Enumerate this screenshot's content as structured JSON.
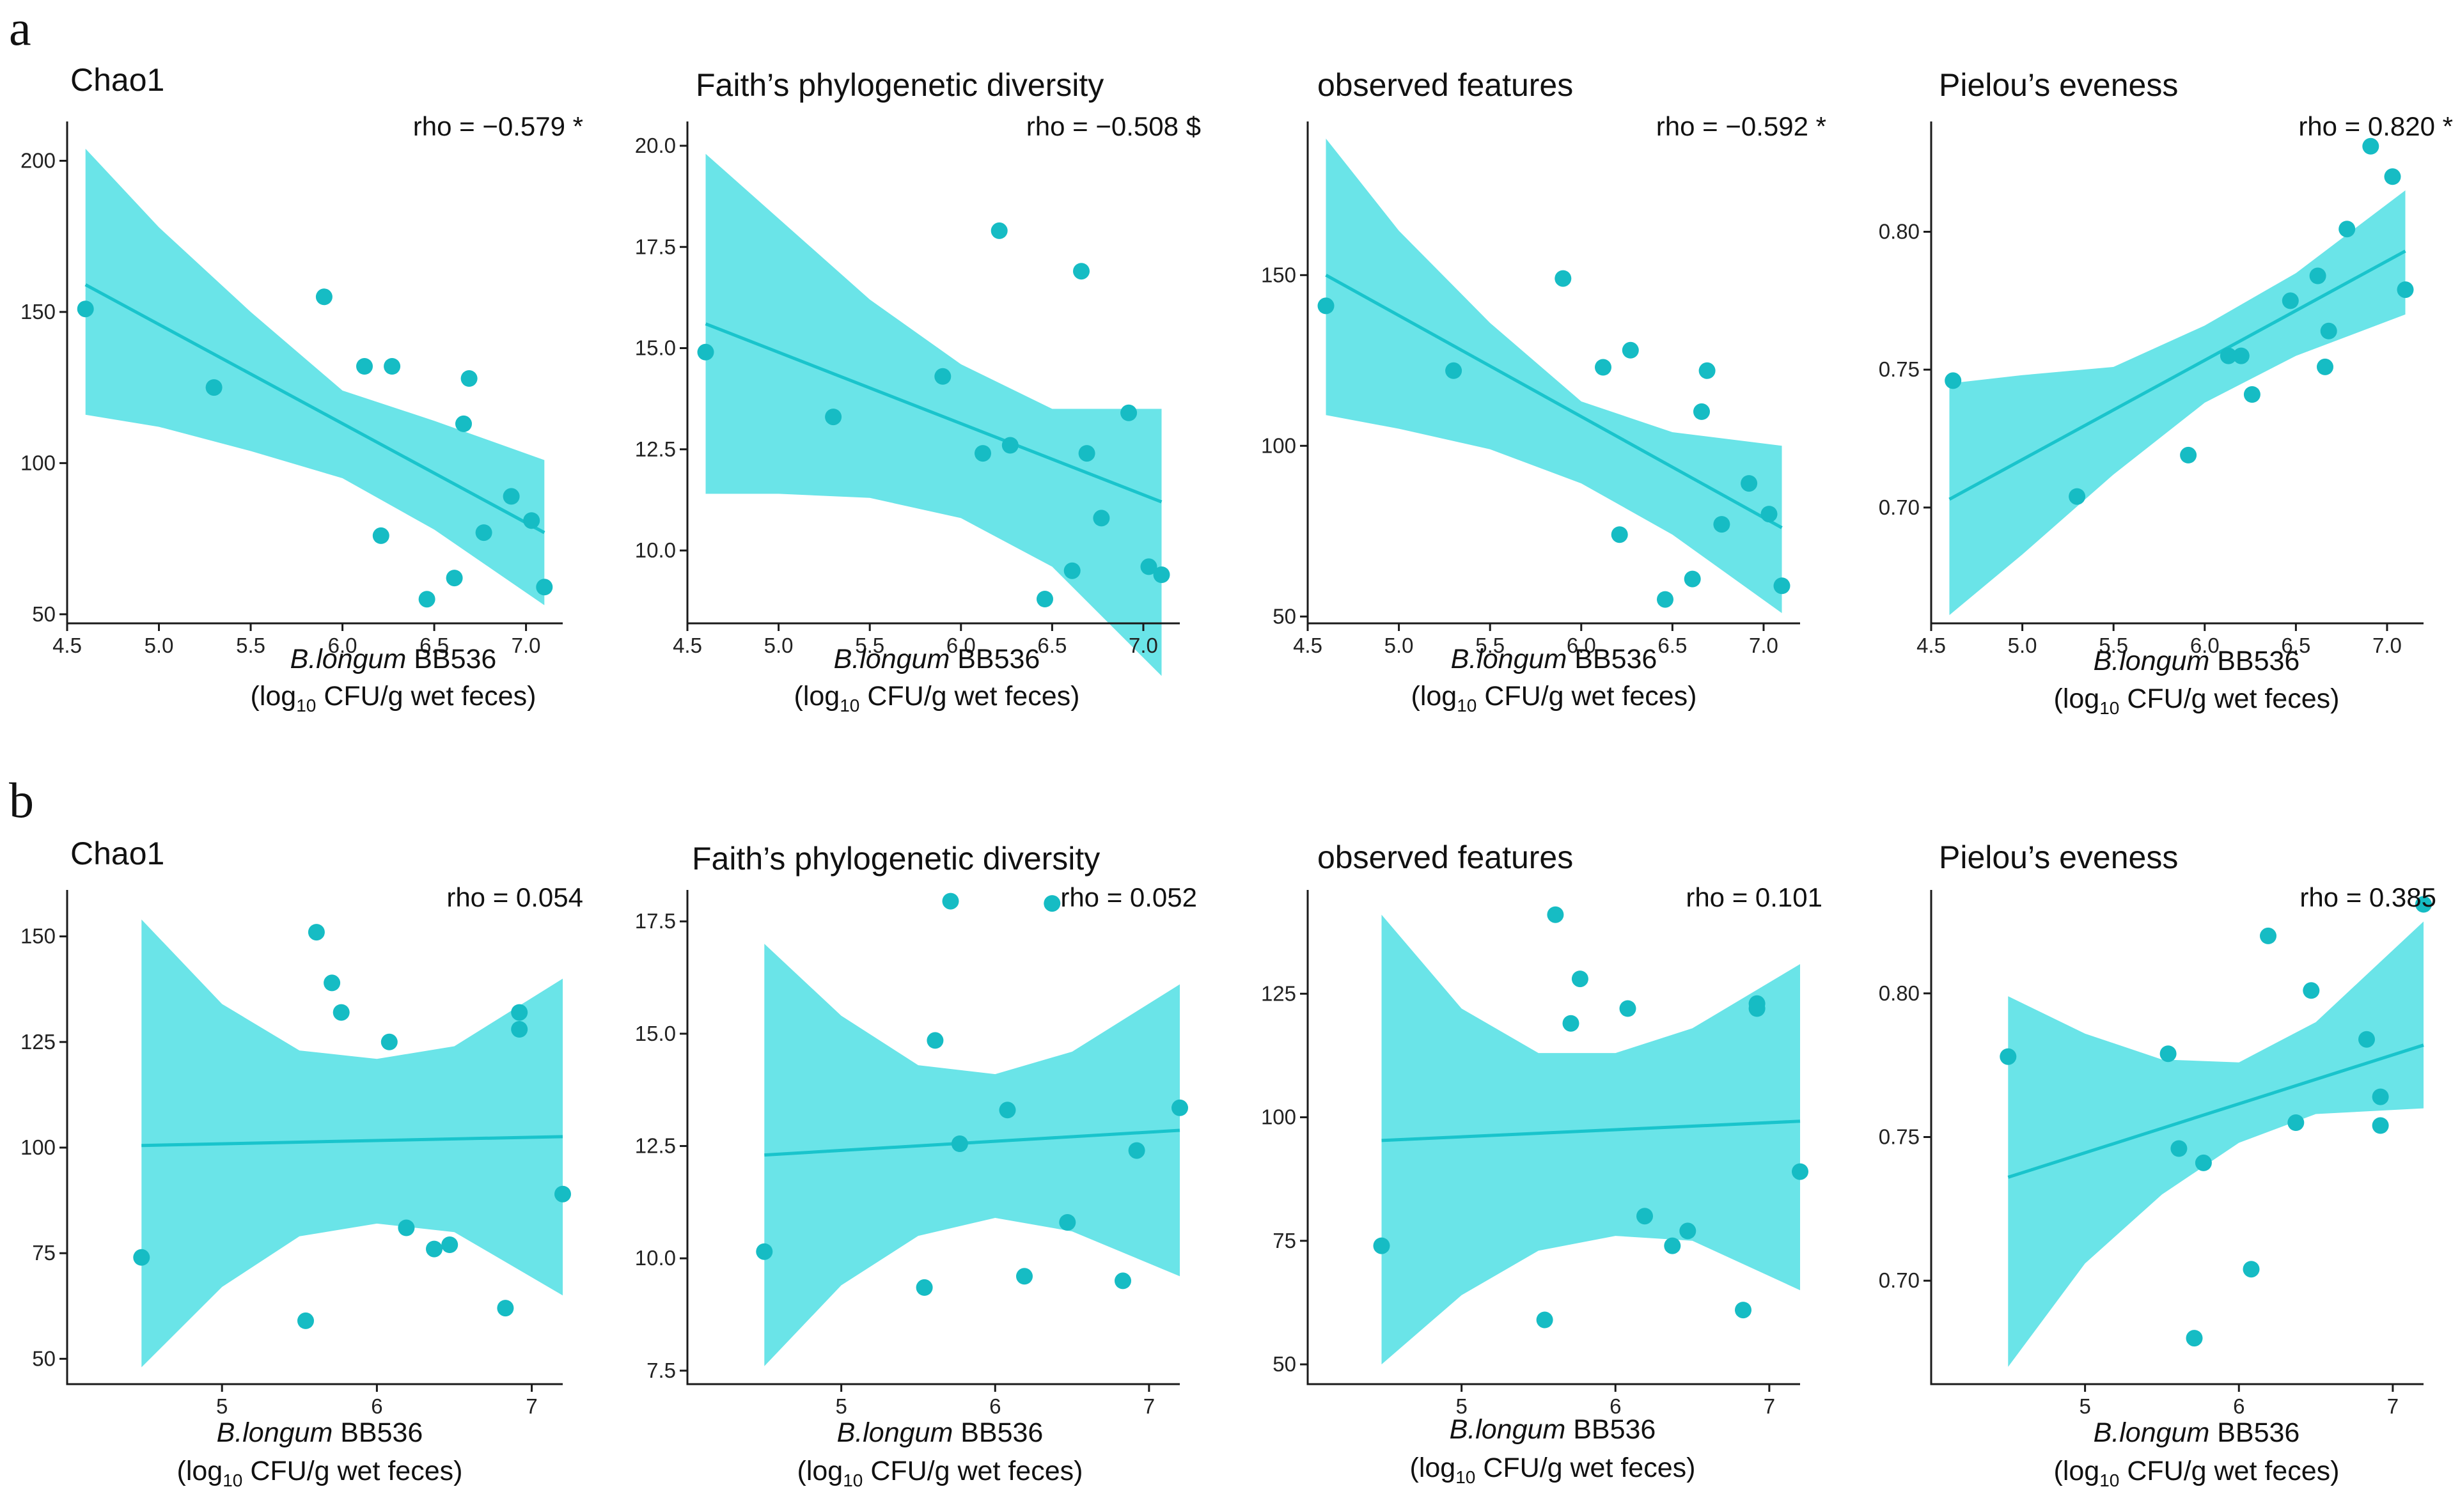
{
  "figure": {
    "panel_letters": [
      "a",
      "b"
    ],
    "colors": {
      "band": "#6ae4e8",
      "line": "#19c4cc",
      "point": "#16bcc4"
    },
    "xlabel": {
      "species": "B.longum",
      "strain": "BB536",
      "unit_prefix": "(log",
      "unit_sub": "10",
      "unit_suffix": " CFU/g wet feces)"
    }
  },
  "chart_data": [
    {
      "type": "scatter",
      "title": "Chao1",
      "annotation": "rho =  −0.579 *",
      "xlim": [
        4.5,
        7.2
      ],
      "ylim": [
        47,
        213
      ],
      "xticks": [
        4.5,
        5.0,
        5.5,
        6.0,
        6.5,
        7.0
      ],
      "xtick_labels": [
        "4.5",
        "5.0",
        "5.5",
        "6.0",
        "6.5",
        "7.0"
      ],
      "yticks": [
        50,
        100,
        150,
        200
      ],
      "ytick_labels": [
        "50",
        "100",
        "150",
        "200"
      ],
      "x": [
        4.6,
        5.3,
        5.9,
        6.12,
        6.21,
        6.27,
        6.46,
        6.61,
        6.66,
        6.69,
        6.77,
        6.92,
        7.03,
        7.1
      ],
      "y": [
        151,
        125,
        155,
        132,
        76,
        132,
        55,
        62,
        113,
        128,
        77,
        89,
        81,
        59
      ],
      "fit": {
        "x": [
          4.6,
          7.1
        ],
        "y": [
          159,
          77
        ]
      },
      "band": {
        "x": [
          4.6,
          5.0,
          5.5,
          6.0,
          6.5,
          7.1
        ],
        "lower": [
          116,
          112,
          104,
          95,
          78,
          53
        ],
        "upper": [
          204,
          178,
          150,
          124,
          114,
          101
        ]
      }
    },
    {
      "type": "scatter",
      "title": "Faith’s phylogenetic diversity",
      "annotation": "rho =  −0.508 $",
      "xlim": [
        4.5,
        7.2
      ],
      "ylim": [
        8.2,
        20.6
      ],
      "xticks": [
        4.5,
        5.0,
        5.5,
        6.0,
        6.5,
        7.0
      ],
      "xtick_labels": [
        "4.5",
        "5.0",
        "5.5",
        "6.0",
        "6.5",
        "7.0"
      ],
      "yticks": [
        10.0,
        12.5,
        15.0,
        17.5,
        20.0
      ],
      "ytick_labels": [
        "10.0",
        "12.5",
        "15.0",
        "17.5",
        "20.0"
      ],
      "x": [
        4.6,
        5.3,
        5.9,
        6.12,
        6.21,
        6.27,
        6.46,
        6.61,
        6.66,
        6.69,
        6.77,
        6.92,
        7.03,
        7.1
      ],
      "y": [
        14.9,
        13.3,
        14.3,
        12.4,
        17.9,
        12.6,
        8.8,
        9.5,
        16.9,
        12.4,
        10.8,
        13.4,
        9.6,
        9.4
      ],
      "fit": {
        "x": [
          4.6,
          7.1
        ],
        "y": [
          15.6,
          11.2
        ]
      },
      "band": {
        "x": [
          4.6,
          5.0,
          5.5,
          6.0,
          6.5,
          7.1
        ],
        "lower": [
          11.4,
          11.4,
          11.3,
          10.8,
          9.6,
          6.9
        ],
        "upper": [
          19.8,
          18.2,
          16.2,
          14.6,
          13.5,
          13.5
        ]
      }
    },
    {
      "type": "scatter",
      "title": "observed features",
      "annotation": "rho =  −0.592 *",
      "xlim": [
        4.5,
        7.2
      ],
      "ylim": [
        48,
        195
      ],
      "xticks": [
        4.5,
        5.0,
        5.5,
        6.0,
        6.5,
        7.0
      ],
      "xtick_labels": [
        "4.5",
        "5.0",
        "5.5",
        "6.0",
        "6.5",
        "7.0"
      ],
      "yticks": [
        50,
        100,
        150
      ],
      "ytick_labels": [
        "50",
        "100",
        "150"
      ],
      "x": [
        4.6,
        5.3,
        5.9,
        6.12,
        6.21,
        6.27,
        6.46,
        6.61,
        6.66,
        6.69,
        6.77,
        6.92,
        7.03,
        7.1
      ],
      "y": [
        141,
        122,
        149,
        123,
        74,
        128,
        55,
        61,
        110,
        122,
        77,
        89,
        80,
        59
      ],
      "fit": {
        "x": [
          4.6,
          7.1
        ],
        "y": [
          150,
          76
        ]
      },
      "band": {
        "x": [
          4.6,
          5.0,
          5.5,
          6.0,
          6.5,
          7.1
        ],
        "lower": [
          109,
          105,
          99,
          89,
          74,
          51
        ],
        "upper": [
          190,
          163,
          136,
          113,
          104,
          100
        ]
      }
    },
    {
      "type": "scatter",
      "title": "Pielou’s eveness",
      "annotation": "rho =  0.820 *",
      "xlim": [
        4.5,
        7.2
      ],
      "ylim": [
        0.658,
        0.84
      ],
      "xticks": [
        4.5,
        5.0,
        5.5,
        6.0,
        6.5,
        7.0
      ],
      "xtick_labels": [
        "4.5",
        "5.0",
        "5.5",
        "6.0",
        "6.5",
        "7.0"
      ],
      "yticks": [
        0.7,
        0.75,
        0.8
      ],
      "ytick_labels": [
        "0.70",
        "0.75",
        "0.80"
      ],
      "x": [
        4.62,
        5.3,
        5.91,
        6.13,
        6.2,
        6.26,
        6.47,
        6.62,
        6.66,
        6.68,
        6.78,
        6.91,
        7.03,
        7.1
      ],
      "y": [
        0.746,
        0.704,
        0.719,
        0.755,
        0.755,
        0.741,
        0.775,
        0.784,
        0.751,
        0.764,
        0.801,
        0.831,
        0.82,
        0.779
      ],
      "fit": {
        "x": [
          4.6,
          7.1
        ],
        "y": [
          0.703,
          0.793
        ]
      },
      "band": {
        "x": [
          4.6,
          5.0,
          5.5,
          6.0,
          6.5,
          7.1
        ],
        "lower": [
          0.661,
          0.683,
          0.712,
          0.738,
          0.755,
          0.77
        ],
        "upper": [
          0.745,
          0.748,
          0.751,
          0.766,
          0.785,
          0.815
        ]
      }
    },
    {
      "type": "scatter",
      "title": "Chao1",
      "annotation": "rho =  0.054",
      "xlim": [
        4.0,
        7.2
      ],
      "ylim": [
        44,
        161
      ],
      "xticks": [
        5,
        6,
        7
      ],
      "xtick_labels": [
        "5",
        "6",
        "7"
      ],
      "yticks": [
        50,
        75,
        100,
        125,
        150
      ],
      "ytick_labels": [
        "50",
        "75",
        "100",
        "125",
        "150"
      ],
      "x": [
        4.48,
        5.54,
        5.61,
        5.71,
        5.77,
        6.08,
        6.19,
        6.37,
        6.47,
        6.83,
        6.92,
        6.92,
        7.2
      ],
      "y": [
        74,
        59,
        151,
        139,
        132,
        125,
        81,
        76,
        77,
        62,
        132,
        128,
        89
      ],
      "fit": {
        "x": [
          4.48,
          7.2
        ],
        "y": [
          100.5,
          102.6
        ]
      },
      "band": {
        "x": [
          4.48,
          5.0,
          5.5,
          6.0,
          6.5,
          7.2
        ],
        "lower": [
          48,
          67,
          79,
          82,
          80,
          65
        ],
        "upper": [
          154,
          134,
          123,
          121,
          124,
          140
        ]
      }
    },
    {
      "type": "scatter",
      "title": "Faith’s phylogenetic diversity",
      "annotation": "rho =  0.052",
      "xlim": [
        4.0,
        7.2
      ],
      "ylim": [
        7.2,
        18.2
      ],
      "xticks": [
        5,
        6,
        7
      ],
      "xtick_labels": [
        "5",
        "6",
        "7"
      ],
      "yticks": [
        7.5,
        10.0,
        12.5,
        15.0,
        17.5
      ],
      "ytick_labels": [
        "7.5",
        "10.0",
        "12.5",
        "15.0",
        "17.5"
      ],
      "x": [
        4.5,
        5.54,
        5.61,
        5.71,
        5.77,
        6.08,
        6.19,
        6.37,
        6.47,
        6.83,
        6.92,
        7.2
      ],
      "y": [
        10.15,
        9.35,
        14.85,
        17.95,
        12.55,
        13.3,
        9.6,
        17.9,
        10.8,
        9.5,
        12.4,
        13.35
      ],
      "fit": {
        "x": [
          4.5,
          7.2
        ],
        "y": [
          12.3,
          12.85
        ]
      },
      "band": {
        "x": [
          4.5,
          5.0,
          5.5,
          6.0,
          6.5,
          7.2
        ],
        "lower": [
          7.6,
          9.4,
          10.5,
          10.9,
          10.6,
          9.6
        ],
        "upper": [
          17.0,
          15.4,
          14.3,
          14.1,
          14.6,
          16.1
        ]
      }
    },
    {
      "type": "scatter",
      "title": "observed features",
      "annotation": "rho =  0.101",
      "xlim": [
        4.0,
        7.2
      ],
      "ylim": [
        46,
        146
      ],
      "xticks": [
        5,
        6,
        7
      ],
      "xtick_labels": [
        "5",
        "6",
        "7"
      ],
      "yticks": [
        50,
        75,
        100,
        125
      ],
      "ytick_labels": [
        "50",
        "75",
        "100",
        "125"
      ],
      "x": [
        4.48,
        5.54,
        5.61,
        5.71,
        5.77,
        6.08,
        6.19,
        6.37,
        6.47,
        6.83,
        6.92,
        6.92,
        7.2
      ],
      "y": [
        74,
        59,
        141,
        119,
        128,
        122,
        80,
        74,
        77,
        61,
        123,
        122,
        89
      ],
      "fit": {
        "x": [
          4.48,
          7.2
        ],
        "y": [
          95.3,
          99.2
        ]
      },
      "band": {
        "x": [
          4.48,
          5.0,
          5.5,
          6.0,
          6.5,
          7.2
        ],
        "lower": [
          50,
          64,
          73,
          76,
          75,
          65
        ],
        "upper": [
          141,
          122,
          113,
          113,
          118,
          131
        ]
      }
    },
    {
      "type": "scatter",
      "title": "Pielou’s eveness",
      "annotation": "rho =  0.385",
      "xlim": [
        4.0,
        7.2
      ],
      "ylim": [
        0.664,
        0.836
      ],
      "xticks": [
        5,
        6,
        7
      ],
      "xtick_labels": [
        "5",
        "6",
        "7"
      ],
      "yticks": [
        0.7,
        0.75,
        0.8
      ],
      "ytick_labels": [
        "0.70",
        "0.75",
        "0.80"
      ],
      "x": [
        4.5,
        5.54,
        5.61,
        5.71,
        5.77,
        6.08,
        6.19,
        6.37,
        6.47,
        6.83,
        6.92,
        6.92,
        7.2
      ],
      "y": [
        0.778,
        0.779,
        0.746,
        0.68,
        0.741,
        0.704,
        0.82,
        0.755,
        0.801,
        0.784,
        0.764,
        0.754,
        0.831
      ],
      "fit": {
        "x": [
          4.5,
          7.2
        ],
        "y": [
          0.736,
          0.782
        ]
      },
      "band": {
        "x": [
          4.5,
          5.0,
          5.5,
          6.0,
          6.5,
          7.2
        ],
        "lower": [
          0.67,
          0.706,
          0.73,
          0.748,
          0.758,
          0.76
        ],
        "upper": [
          0.799,
          0.786,
          0.777,
          0.776,
          0.79,
          0.825
        ]
      }
    }
  ]
}
